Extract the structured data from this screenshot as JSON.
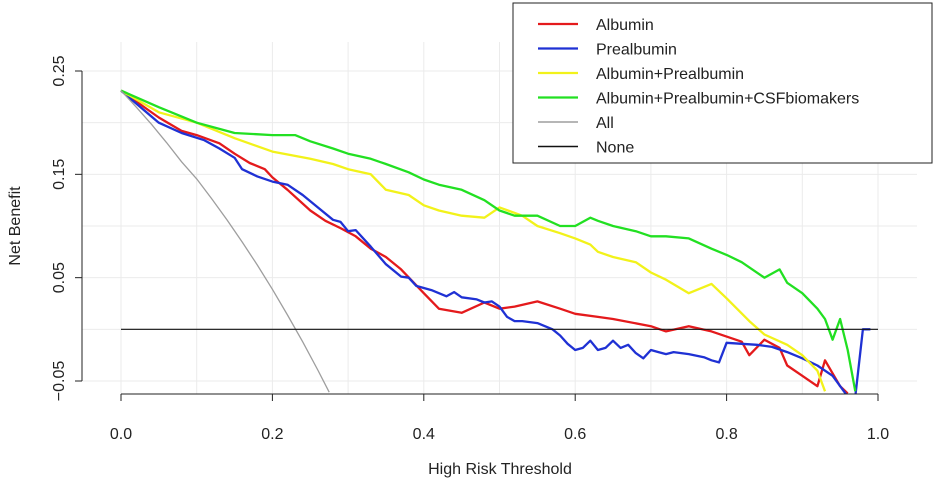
{
  "chart_data": {
    "type": "line",
    "title": "",
    "xlabel": "High Risk Threshold",
    "ylabel": "Net Benefit",
    "xlim": [
      0.0,
      1.0
    ],
    "ylim": [
      -0.05,
      0.25
    ],
    "x_ticks": [
      "0.0",
      "0.2",
      "0.4",
      "0.6",
      "0.8",
      "1.0"
    ],
    "y_ticks": [
      "−0.05",
      "0.05",
      "0.15",
      "0.25"
    ],
    "y_tick_values": [
      -0.05,
      0.05,
      0.15,
      0.25
    ],
    "grid": true,
    "legend_position": "top-right",
    "series": [
      {
        "name": "Albumin",
        "color": "#e41a1c",
        "x": [
          0.0,
          0.05,
          0.08,
          0.1,
          0.13,
          0.15,
          0.17,
          0.19,
          0.2,
          0.22,
          0.25,
          0.27,
          0.29,
          0.31,
          0.33,
          0.35,
          0.37,
          0.4,
          0.42,
          0.45,
          0.48,
          0.5,
          0.52,
          0.55,
          0.58,
          0.6,
          0.63,
          0.65,
          0.7,
          0.72,
          0.75,
          0.78,
          0.8,
          0.82,
          0.83,
          0.85,
          0.87,
          0.88,
          0.9,
          0.92,
          0.93,
          0.95,
          0.96
        ],
        "y": [
          0.231,
          0.205,
          0.192,
          0.188,
          0.18,
          0.17,
          0.161,
          0.155,
          0.147,
          0.135,
          0.115,
          0.105,
          0.098,
          0.09,
          0.078,
          0.07,
          0.058,
          0.035,
          0.02,
          0.016,
          0.026,
          0.02,
          0.022,
          0.027,
          0.02,
          0.015,
          0.012,
          0.01,
          0.003,
          -0.002,
          0.003,
          -0.002,
          -0.007,
          -0.012,
          -0.025,
          -0.01,
          -0.018,
          -0.035,
          -0.045,
          -0.055,
          -0.03,
          -0.055,
          -0.062
        ]
      },
      {
        "name": "Prealbumin",
        "color": "#1f31d4",
        "x": [
          0.0,
          0.05,
          0.08,
          0.11,
          0.13,
          0.15,
          0.16,
          0.18,
          0.2,
          0.22,
          0.24,
          0.26,
          0.28,
          0.29,
          0.3,
          0.31,
          0.33,
          0.35,
          0.37,
          0.38,
          0.39,
          0.41,
          0.43,
          0.44,
          0.45,
          0.47,
          0.48,
          0.49,
          0.5,
          0.51,
          0.52,
          0.53,
          0.55,
          0.57,
          0.58,
          0.59,
          0.6,
          0.61,
          0.62,
          0.63,
          0.64,
          0.65,
          0.66,
          0.67,
          0.68,
          0.69,
          0.7,
          0.71,
          0.72,
          0.73,
          0.75,
          0.77,
          0.78,
          0.79,
          0.8,
          0.82,
          0.84,
          0.86,
          0.88,
          0.9,
          0.92,
          0.94,
          0.96,
          0.97,
          0.98,
          0.99
        ],
        "y": [
          0.231,
          0.2,
          0.19,
          0.183,
          0.175,
          0.166,
          0.155,
          0.148,
          0.143,
          0.14,
          0.13,
          0.118,
          0.106,
          0.104,
          0.095,
          0.096,
          0.08,
          0.063,
          0.051,
          0.05,
          0.042,
          0.038,
          0.032,
          0.036,
          0.031,
          0.029,
          0.026,
          0.027,
          0.022,
          0.012,
          0.008,
          0.008,
          0.006,
          0.0,
          -0.006,
          -0.014,
          -0.02,
          -0.018,
          -0.011,
          -0.02,
          -0.018,
          -0.011,
          -0.018,
          -0.015,
          -0.023,
          -0.028,
          -0.02,
          -0.022,
          -0.024,
          -0.022,
          -0.024,
          -0.027,
          -0.03,
          -0.032,
          -0.013,
          -0.014,
          -0.015,
          -0.017,
          -0.022,
          -0.028,
          -0.035,
          -0.045,
          -0.065,
          -0.065,
          0.0,
          0.0
        ]
      },
      {
        "name": "Albumin+Prealbumin",
        "color": "#f2f21a",
        "x": [
          0.0,
          0.05,
          0.1,
          0.15,
          0.2,
          0.25,
          0.28,
          0.3,
          0.33,
          0.35,
          0.38,
          0.4,
          0.42,
          0.45,
          0.48,
          0.5,
          0.53,
          0.55,
          0.58,
          0.6,
          0.62,
          0.63,
          0.65,
          0.68,
          0.7,
          0.72,
          0.75,
          0.78,
          0.8,
          0.83,
          0.85,
          0.88,
          0.9,
          0.92,
          0.93
        ],
        "y": [
          0.231,
          0.21,
          0.2,
          0.185,
          0.172,
          0.165,
          0.16,
          0.155,
          0.15,
          0.135,
          0.13,
          0.12,
          0.115,
          0.11,
          0.108,
          0.118,
          0.11,
          0.1,
          0.093,
          0.088,
          0.082,
          0.075,
          0.07,
          0.065,
          0.055,
          0.048,
          0.035,
          0.044,
          0.03,
          0.008,
          -0.005,
          -0.015,
          -0.025,
          -0.04,
          -0.06
        ]
      },
      {
        "name": "Albumin+Prealbumin+CSFbiomakers",
        "color": "#22e022",
        "x": [
          0.0,
          0.05,
          0.1,
          0.15,
          0.2,
          0.23,
          0.25,
          0.28,
          0.3,
          0.33,
          0.35,
          0.38,
          0.4,
          0.42,
          0.45,
          0.48,
          0.5,
          0.52,
          0.55,
          0.58,
          0.6,
          0.62,
          0.63,
          0.65,
          0.68,
          0.7,
          0.72,
          0.75,
          0.78,
          0.8,
          0.82,
          0.85,
          0.87,
          0.88,
          0.9,
          0.92,
          0.93,
          0.94,
          0.95,
          0.96,
          0.97
        ],
        "y": [
          0.231,
          0.215,
          0.2,
          0.19,
          0.188,
          0.188,
          0.182,
          0.175,
          0.17,
          0.165,
          0.16,
          0.152,
          0.145,
          0.14,
          0.135,
          0.125,
          0.115,
          0.11,
          0.11,
          0.1,
          0.1,
          0.108,
          0.105,
          0.1,
          0.095,
          0.09,
          0.09,
          0.088,
          0.078,
          0.072,
          0.065,
          0.05,
          0.058,
          0.045,
          0.035,
          0.02,
          0.01,
          -0.01,
          0.01,
          -0.02,
          -0.06
        ]
      },
      {
        "name": "All",
        "color": "#9e9e9e",
        "x": [
          0.0,
          0.02,
          0.04,
          0.06,
          0.08,
          0.1,
          0.12,
          0.14,
          0.16,
          0.18,
          0.2,
          0.22,
          0.24,
          0.26,
          0.275
        ],
        "y": [
          0.231,
          0.2153,
          0.1986,
          0.1809,
          0.1621,
          0.1456,
          0.1262,
          0.1059,
          0.0846,
          0.0623,
          0.0387,
          0.0139,
          -0.0121,
          -0.0394,
          -0.0608
        ]
      },
      {
        "name": "None",
        "color": "#111111",
        "x": [
          0.0,
          1.0
        ],
        "y": [
          0.0,
          0.0
        ]
      }
    ]
  }
}
